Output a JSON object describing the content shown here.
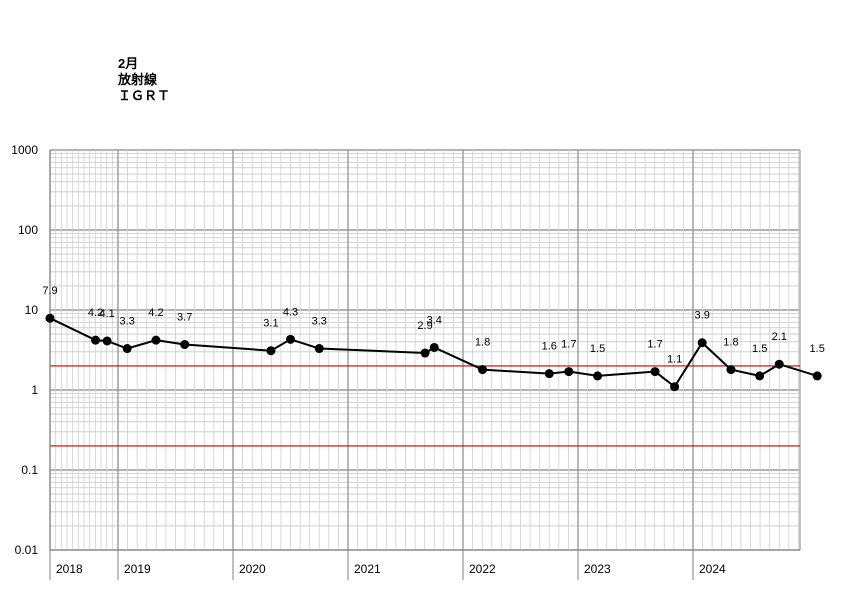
{
  "header": {
    "line1": "2月",
    "line2": "放射線",
    "line3": "ＩＧＲＴ"
  },
  "chart_data": {
    "type": "line",
    "title": "",
    "xlabel": "",
    "ylabel": "",
    "y_scale": "log",
    "ylim": [
      0.01,
      1000
    ],
    "y_ticks": [
      "1000",
      "100",
      "10",
      "1",
      "0.1",
      "0.01"
    ],
    "x_ticks": [
      "2018",
      "2019",
      "2020",
      "2021",
      "2022",
      "2023",
      "2024"
    ],
    "reference_lines": [
      {
        "value": 2,
        "color": "#cc0000"
      },
      {
        "value": 0.2,
        "color": "#cc0000"
      }
    ],
    "grid": true,
    "series": [
      {
        "color": "#000000",
        "points": [
          {
            "x": 2018.0,
            "y": 7.9,
            "label": "7.9"
          },
          {
            "x": 2018.67,
            "y": 4.2,
            "label": "4.2"
          },
          {
            "x": 2018.84,
            "y": 4.1,
            "label": "4.1"
          },
          {
            "x": 2019.08,
            "y": 3.3,
            "label": "3.3"
          },
          {
            "x": 2019.33,
            "y": 4.2,
            "label": "4.2"
          },
          {
            "x": 2019.58,
            "y": 3.7,
            "label": "3.7"
          },
          {
            "x": 2020.33,
            "y": 3.1,
            "label": "3.1"
          },
          {
            "x": 2020.5,
            "y": 4.3,
            "label": "4.3"
          },
          {
            "x": 2020.75,
            "y": 3.3,
            "label": "3.3"
          },
          {
            "x": 2021.67,
            "y": 2.9,
            "label": "2.9"
          },
          {
            "x": 2021.75,
            "y": 3.4,
            "label": "3.4"
          },
          {
            "x": 2022.17,
            "y": 1.8,
            "label": "1.8"
          },
          {
            "x": 2022.75,
            "y": 1.6,
            "label": "1.6"
          },
          {
            "x": 2022.92,
            "y": 1.7,
            "label": "1.7"
          },
          {
            "x": 2023.17,
            "y": 1.5,
            "label": "1.5"
          },
          {
            "x": 2023.67,
            "y": 1.7,
            "label": "1.7"
          },
          {
            "x": 2023.84,
            "y": 1.1,
            "label": "1.1"
          },
          {
            "x": 2024.08,
            "y": 3.9,
            "label": "3.9"
          },
          {
            "x": 2024.33,
            "y": 1.8,
            "label": "1.8"
          },
          {
            "x": 2024.58,
            "y": 1.5,
            "label": "1.5"
          },
          {
            "x": 2024.75,
            "y": 2.1,
            "label": "2.1"
          },
          {
            "x": 2025.08,
            "y": 1.5,
            "label": "1.5"
          }
        ]
      }
    ]
  }
}
